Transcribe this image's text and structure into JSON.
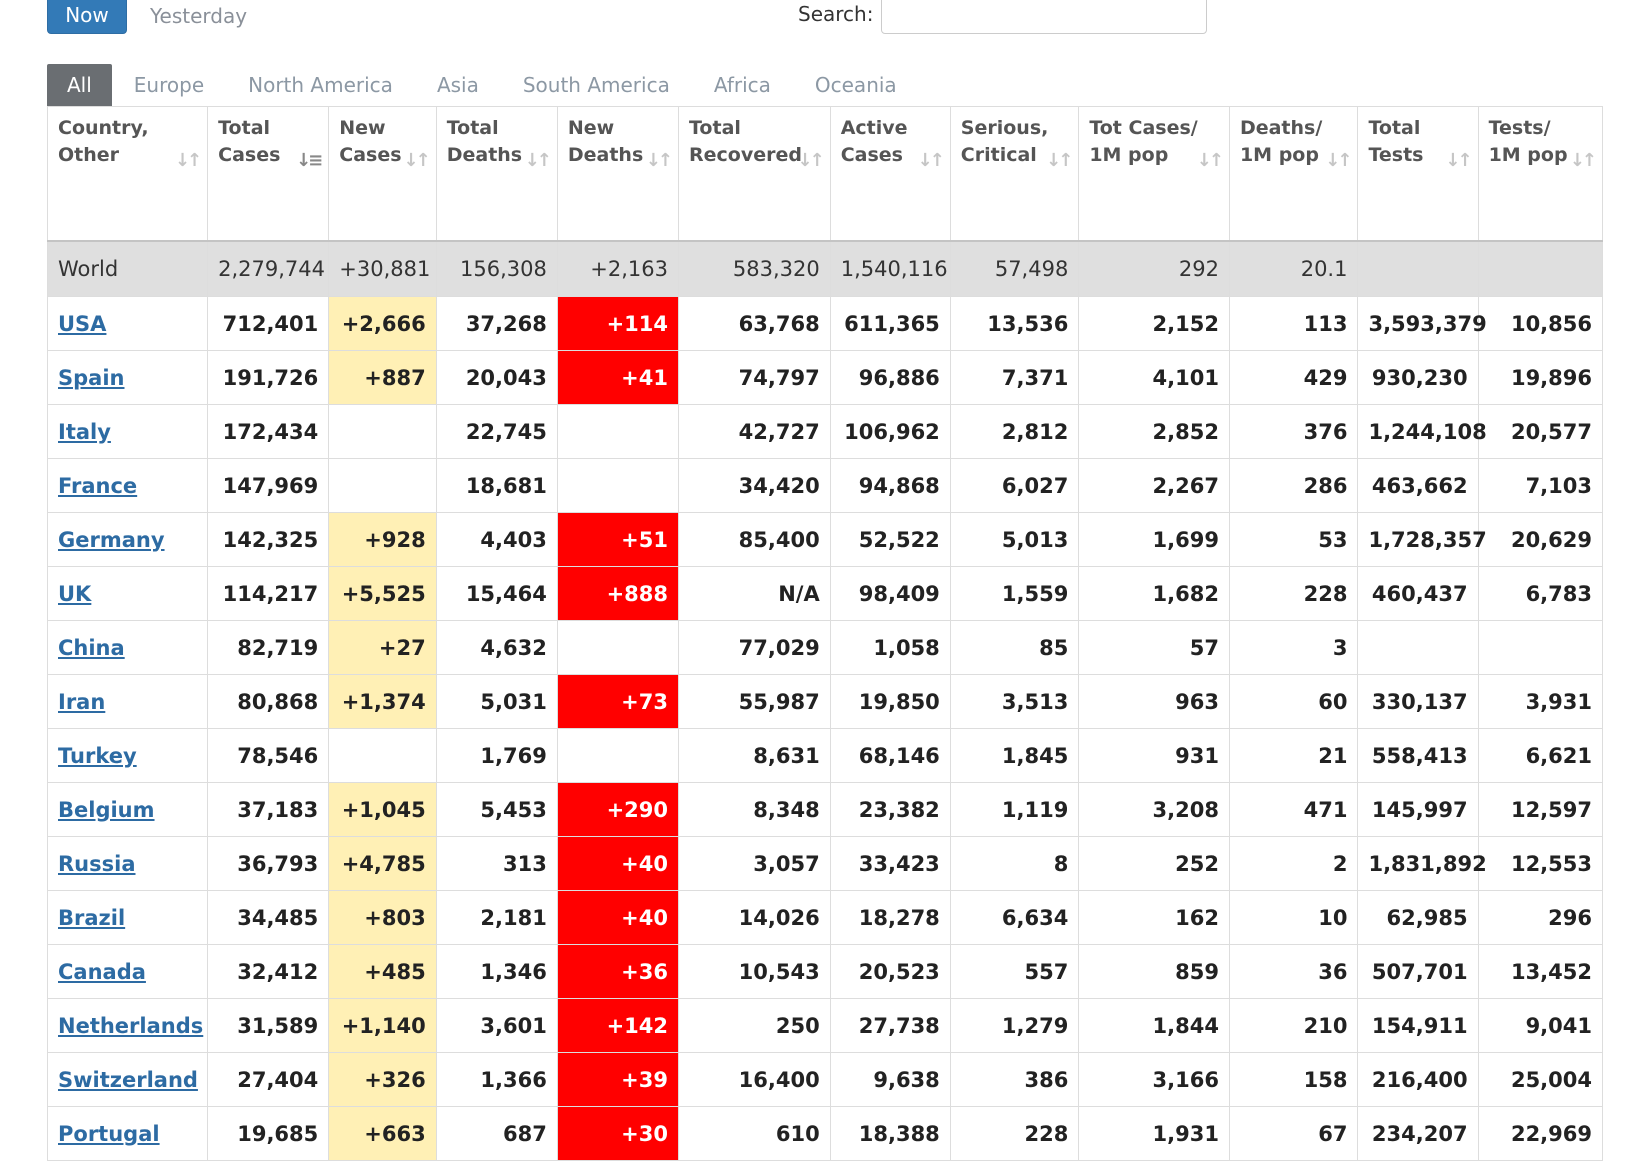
{
  "controls": {
    "now_label": "Now",
    "yesterday_label": "Yesterday",
    "search_label": "Search:",
    "search_value": ""
  },
  "tabs": [
    "All",
    "Europe",
    "North America",
    "Asia",
    "South America",
    "Africa",
    "Oceania"
  ],
  "active_tab": "All",
  "table": {
    "headers": [
      [
        "Country,",
        "Other"
      ],
      [
        "Total",
        "Cases"
      ],
      [
        "New",
        "Cases"
      ],
      [
        "Total",
        "Deaths"
      ],
      [
        "New",
        "Deaths"
      ],
      [
        "Total",
        "Recovered"
      ],
      [
        "Active",
        "Cases"
      ],
      [
        "Serious,",
        "Critical"
      ],
      [
        "Tot Cases/",
        "1M pop"
      ],
      [
        "Deaths/",
        "1M pop"
      ],
      [
        "Total",
        "Tests"
      ],
      [
        "Tests/",
        "1M pop"
      ]
    ],
    "sorted_column": "Total Cases",
    "world_row": [
      "World",
      "2,279,744",
      "+30,881",
      "156,308",
      "+2,163",
      "583,320",
      "1,540,116",
      "57,498",
      "292",
      "20.1",
      "",
      ""
    ],
    "rows": [
      [
        "USA",
        "712,401",
        "+2,666",
        "37,268",
        "+114",
        "63,768",
        "611,365",
        "13,536",
        "2,152",
        "113",
        "3,593,379",
        "10,856"
      ],
      [
        "Spain",
        "191,726",
        "+887",
        "20,043",
        "+41",
        "74,797",
        "96,886",
        "7,371",
        "4,101",
        "429",
        "930,230",
        "19,896"
      ],
      [
        "Italy",
        "172,434",
        "",
        "22,745",
        "",
        "42,727",
        "106,962",
        "2,812",
        "2,852",
        "376",
        "1,244,108",
        "20,577"
      ],
      [
        "France",
        "147,969",
        "",
        "18,681",
        "",
        "34,420",
        "94,868",
        "6,027",
        "2,267",
        "286",
        "463,662",
        "7,103"
      ],
      [
        "Germany",
        "142,325",
        "+928",
        "4,403",
        "+51",
        "85,400",
        "52,522",
        "5,013",
        "1,699",
        "53",
        "1,728,357",
        "20,629"
      ],
      [
        "UK",
        "114,217",
        "+5,525",
        "15,464",
        "+888",
        "N/A",
        "98,409",
        "1,559",
        "1,682",
        "228",
        "460,437",
        "6,783"
      ],
      [
        "China",
        "82,719",
        "+27",
        "4,632",
        "",
        "77,029",
        "1,058",
        "85",
        "57",
        "3",
        "",
        ""
      ],
      [
        "Iran",
        "80,868",
        "+1,374",
        "5,031",
        "+73",
        "55,987",
        "19,850",
        "3,513",
        "963",
        "60",
        "330,137",
        "3,931"
      ],
      [
        "Turkey",
        "78,546",
        "",
        "1,769",
        "",
        "8,631",
        "68,146",
        "1,845",
        "931",
        "21",
        "558,413",
        "6,621"
      ],
      [
        "Belgium",
        "37,183",
        "+1,045",
        "5,453",
        "+290",
        "8,348",
        "23,382",
        "1,119",
        "3,208",
        "471",
        "145,997",
        "12,597"
      ],
      [
        "Russia",
        "36,793",
        "+4,785",
        "313",
        "+40",
        "3,057",
        "33,423",
        "8",
        "252",
        "2",
        "1,831,892",
        "12,553"
      ],
      [
        "Brazil",
        "34,485",
        "+803",
        "2,181",
        "+40",
        "14,026",
        "18,278",
        "6,634",
        "162",
        "10",
        "62,985",
        "296"
      ],
      [
        "Canada",
        "32,412",
        "+485",
        "1,346",
        "+36",
        "10,543",
        "20,523",
        "557",
        "859",
        "36",
        "507,701",
        "13,452"
      ],
      [
        "Netherlands",
        "31,589",
        "+1,140",
        "3,601",
        "+142",
        "250",
        "27,738",
        "1,279",
        "1,844",
        "210",
        "154,911",
        "9,041"
      ],
      [
        "Switzerland",
        "27,404",
        "+326",
        "1,366",
        "+39",
        "16,400",
        "9,638",
        "386",
        "3,166",
        "158",
        "216,400",
        "25,004"
      ],
      [
        "Portugal",
        "19,685",
        "+663",
        "687",
        "+30",
        "610",
        "18,388",
        "228",
        "1,931",
        "67",
        "234,207",
        "22,969"
      ]
    ]
  },
  "colors": {
    "new_cases_highlight": "#fff0b5",
    "new_deaths_highlight": "#ff0000",
    "link": "#2d6ba3",
    "world_row_bg": "#dfdfdf",
    "active_tab_bg": "#6a6e72",
    "primary_button": "#337ab7"
  },
  "icons": {
    "sort": "sort-arrows-icon"
  }
}
